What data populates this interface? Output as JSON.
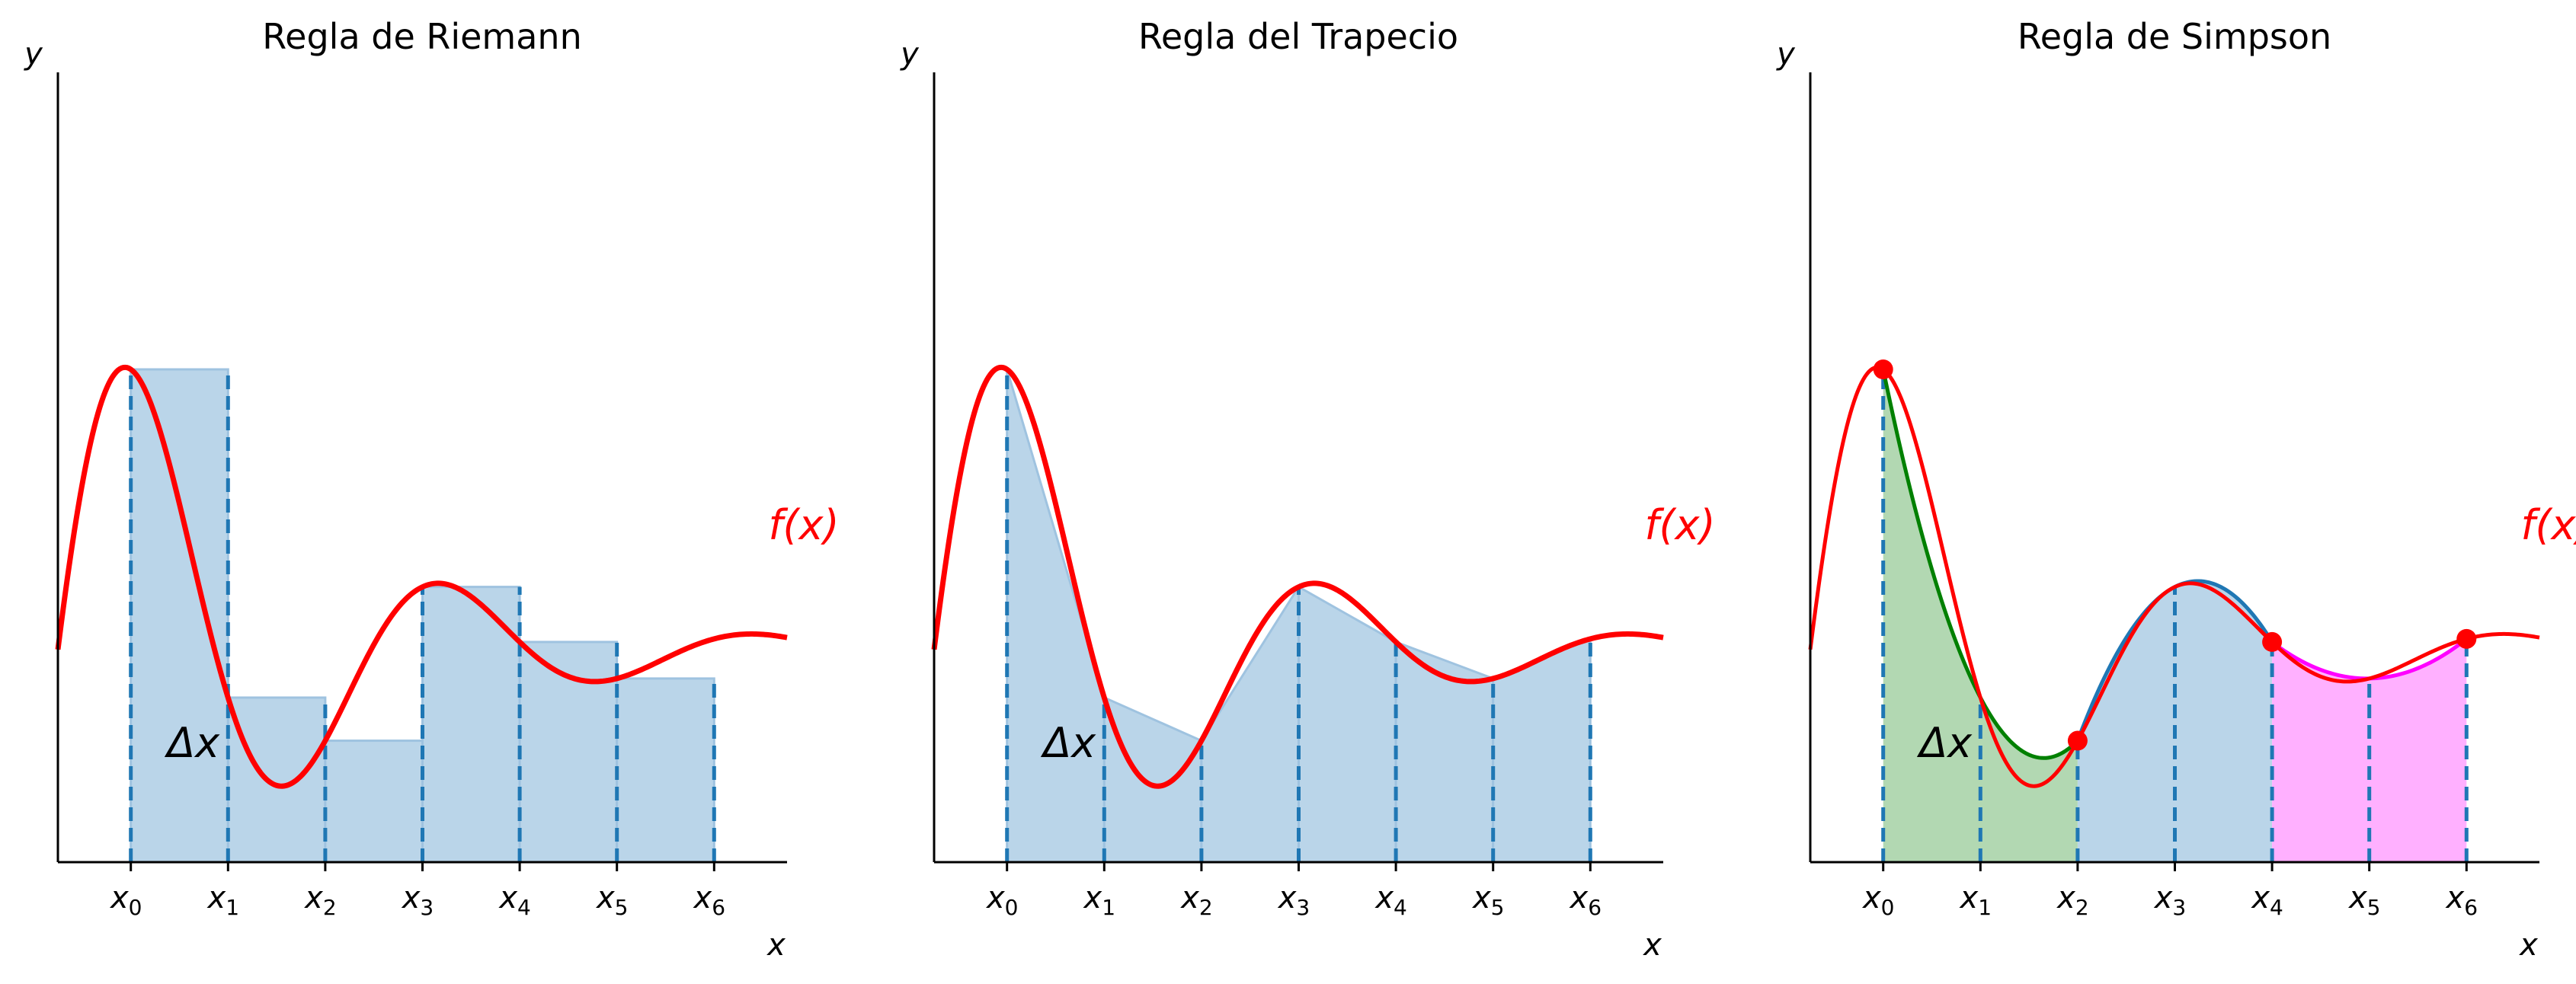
{
  "chart_data": [
    {
      "type": "area",
      "variant": "riemann",
      "title": "Regla de Riemann",
      "xlabel": "x",
      "ylabel": "y",
      "tick_labels": [
        {
          "base": "x",
          "sub": "0"
        },
        {
          "base": "x",
          "sub": "1"
        },
        {
          "base": "x",
          "sub": "2"
        },
        {
          "base": "x",
          "sub": "3"
        },
        {
          "base": "x",
          "sub": "4"
        },
        {
          "base": "x",
          "sub": "5"
        },
        {
          "base": "x",
          "sub": "6"
        }
      ],
      "curve_label": "f(x)",
      "delta_label": "Δx",
      "xlim": [
        -0.75,
        6.75
      ],
      "ylim": [
        0,
        1.3
      ],
      "curve_color": "#ff0000",
      "fill_color": "#bad5e9",
      "line_color": "#1f77b4",
      "grid": false
    },
    {
      "type": "area",
      "variant": "trapezoid",
      "title": "Regla del Trapecio",
      "xlabel": "x",
      "ylabel": "y",
      "tick_labels": [
        {
          "base": "x",
          "sub": "0"
        },
        {
          "base": "x",
          "sub": "1"
        },
        {
          "base": "x",
          "sub": "2"
        },
        {
          "base": "x",
          "sub": "3"
        },
        {
          "base": "x",
          "sub": "4"
        },
        {
          "base": "x",
          "sub": "5"
        },
        {
          "base": "x",
          "sub": "6"
        }
      ],
      "curve_label": "f(x)",
      "delta_label": "Δx",
      "xlim": [
        -0.75,
        6.75
      ],
      "ylim": [
        0,
        1.3
      ],
      "curve_color": "#ff0000",
      "fill_color": "#bad5e9",
      "line_color": "#1f77b4",
      "grid": false
    },
    {
      "type": "area",
      "variant": "simpson",
      "title": "Regla de Simpson",
      "xlabel": "x",
      "ylabel": "y",
      "tick_labels": [
        {
          "base": "x",
          "sub": "0"
        },
        {
          "base": "x",
          "sub": "1"
        },
        {
          "base": "x",
          "sub": "2"
        },
        {
          "base": "x",
          "sub": "3"
        },
        {
          "base": "x",
          "sub": "4"
        },
        {
          "base": "x",
          "sub": "5"
        },
        {
          "base": "x",
          "sub": "6"
        }
      ],
      "curve_label": "f(x)",
      "delta_label": "Δx",
      "xlim": [
        -0.75,
        6.75
      ],
      "ylim": [
        0,
        1.3
      ],
      "curve_color": "#ff0000",
      "fill_color": "#bad5e9",
      "line_color": "#1f77b4",
      "simpson_segment_colors": [
        "#008000",
        "#1f77b4",
        "#ff00ff"
      ],
      "simpson_fill_colors": [
        "#b2d8b2",
        "#bad5e9",
        "#ffb0ff"
      ],
      "grid": false
    }
  ]
}
